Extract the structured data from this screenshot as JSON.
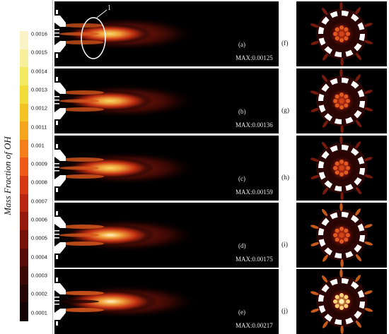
{
  "colorbar": {
    "label": "Mass Fraction of OH",
    "ticks": [
      "0.0016",
      "0.0015",
      "0.0014",
      "0.0013",
      "0.0012",
      "0.0011",
      "0.001",
      "0.0009",
      "0.0008",
      "0.0007",
      "0.0006",
      "0.0005",
      "0.0004",
      "0.0003",
      "0.0002",
      "0.0001"
    ],
    "colors": [
      "#fbf3c8",
      "#f8ef9a",
      "#f3ea62",
      "#f2dc37",
      "#f3c424",
      "#f5a51c",
      "#f47f1a",
      "#ee5a18",
      "#d63a14",
      "#b82510",
      "#951a0c",
      "#74120a",
      "#560c08",
      "#3c0806",
      "#250404",
      "#120202"
    ]
  },
  "annotation": "1",
  "side_panels": [
    {
      "label": "(a)",
      "max": "MAX:0.00125",
      "view": "(f)",
      "intensity": 0.55
    },
    {
      "label": "(b)",
      "max": "MAX:0.00136",
      "view": "(g)",
      "intensity": 0.65
    },
    {
      "label": "(c)",
      "max": "MAX:0.00159",
      "view": "(h)",
      "intensity": 0.75
    },
    {
      "label": "(d)",
      "max": "MAX:0.00175",
      "view": "(i)",
      "intensity": 0.85
    },
    {
      "label": "(e)",
      "max": "MAX:0.00217",
      "view": "(j)",
      "intensity": 1.0
    }
  ]
}
